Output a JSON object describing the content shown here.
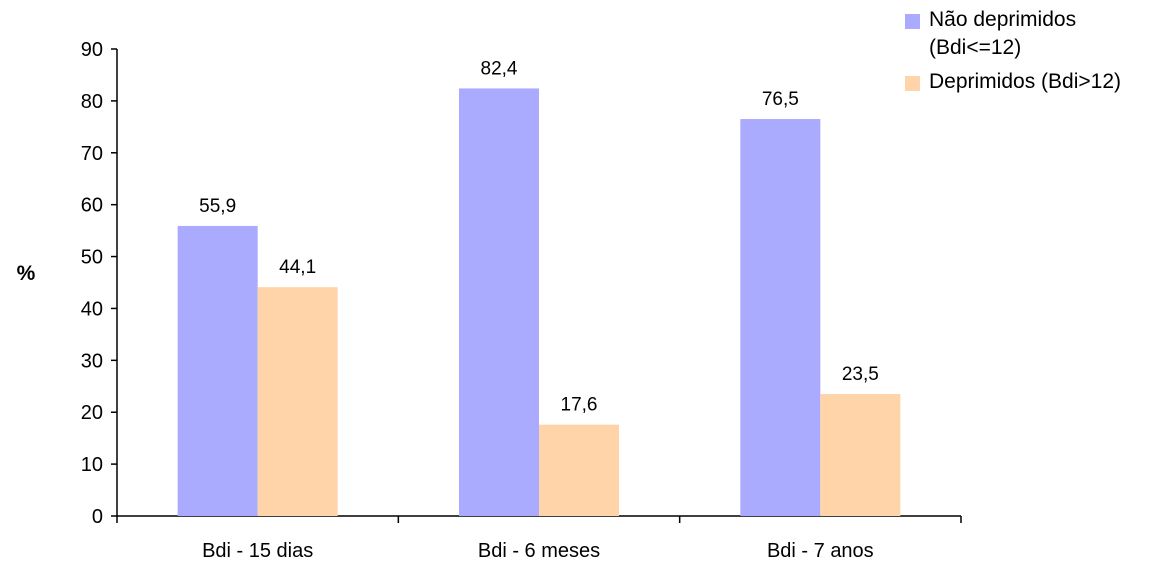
{
  "chart_data": {
    "type": "bar",
    "title": "",
    "xlabel": "",
    "ylabel": "%",
    "ylim": [
      0,
      90
    ],
    "yticks": [
      "0",
      "10",
      "20",
      "30",
      "40",
      "50",
      "60",
      "70",
      "80",
      "90"
    ],
    "categories": [
      "Bdi - 15 dias",
      "Bdi - 6 meses",
      "Bdi - 7 anos"
    ],
    "series": [
      {
        "name": "Não deprimidos (Bdi<=12)",
        "values": [
          55.9,
          82.4,
          76.5
        ],
        "labels": [
          "55,9",
          "82,4",
          "76,5"
        ],
        "color": "#aaaaff"
      },
      {
        "name": "Deprimidos (Bdi>12)",
        "values": [
          44.1,
          17.6,
          23.5
        ],
        "labels": [
          "44,1",
          "17,6",
          "23,5"
        ],
        "color": "#ffd4a8"
      }
    ],
    "grid": false,
    "legend_position": "top-right"
  }
}
